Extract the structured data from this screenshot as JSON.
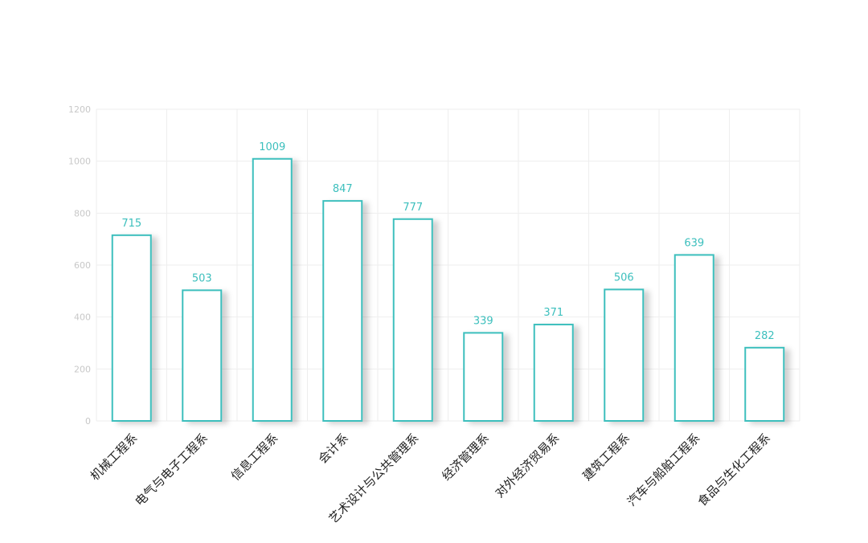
{
  "colors": {
    "bar_stroke": "#3cbfbd",
    "bar_fill": "#ffffff",
    "label": "#3cbfbd",
    "grid": "#eeeeee",
    "y_tick_text": "#c8c8c8",
    "x_tick_text": "#222222"
  },
  "chart_data": {
    "type": "bar",
    "title": "",
    "xlabel": "",
    "ylabel": "",
    "ylim": [
      0,
      1200
    ],
    "yticks": [
      0,
      200,
      400,
      600,
      800,
      1000,
      1200
    ],
    "grid": true,
    "legend": "none",
    "categories": [
      "机械工程系",
      "电气与电子工程系",
      "信息工程系",
      "会计系",
      "艺术设计与公共管理系",
      "经济管理系",
      "对外经济贸易系",
      "建筑工程系",
      "汽车与船舶工程系",
      "食品与生化工程系"
    ],
    "values": [
      715,
      503,
      1009,
      847,
      777,
      339,
      371,
      506,
      639,
      282
    ]
  }
}
